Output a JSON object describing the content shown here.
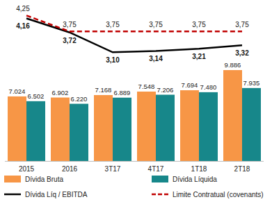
{
  "chart_data": {
    "type": "bar",
    "categories": [
      "2015",
      "2016",
      "3T17",
      "4T17",
      "1T18",
      "2T18"
    ],
    "ylim": [
      0,
      16000
    ],
    "y2lim": [
      -0.3,
      4.3
    ],
    "tick_labels": false,
    "grid": false,
    "legend": "bottom",
    "data_labels": true,
    "series": [
      {
        "name": "Dívida Bruta",
        "type": "bar",
        "color": "#f79646",
        "values": [
          7024,
          6902,
          7168,
          7548,
          7694,
          9886
        ],
        "value_labels": [
          "7.024",
          "6.902",
          "7.168",
          "7.548",
          "7.694",
          "9.886"
        ]
      },
      {
        "name": "Dívida Líquida",
        "type": "bar",
        "color": "#17878a",
        "values": [
          6502,
          6220,
          6889,
          7206,
          7480,
          7935
        ],
        "value_labels": [
          "6.502",
          "6.220",
          "6.889",
          "7.206",
          "7.480",
          "7.935"
        ]
      },
      {
        "name": "Dívida Líq / EBITDA",
        "type": "line",
        "axis": "y2",
        "color": "#000000",
        "line_style": "solid",
        "values": [
          4.16,
          3.72,
          3.1,
          3.14,
          3.21,
          3.32
        ],
        "value_labels": [
          "4,16",
          "3,72",
          "3,10",
          "3,14",
          "3,21",
          "3,32"
        ]
      },
      {
        "name": "Limite Contratual (covenants)",
        "type": "line",
        "axis": "y2",
        "color": "#c00000",
        "line_style": "dashed",
        "values": [
          4.25,
          3.75,
          3.75,
          3.75,
          3.75,
          3.75
        ],
        "value_labels": [
          "4,25",
          "3,75",
          "3,75",
          "3,75",
          "3,75",
          "3,75"
        ]
      }
    ]
  }
}
